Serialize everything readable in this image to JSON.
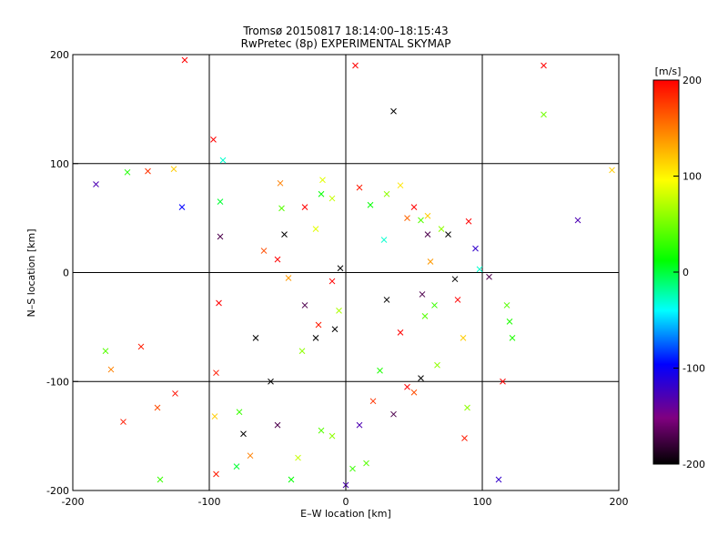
{
  "chart_data": {
    "type": "scatter",
    "title": "Tromsø 20150817 18:14:00–18:15:43",
    "subtitle": "RwPretec (8p) EXPERIMENTAL SKYMAP",
    "xlabel": "E–W location [km]",
    "ylabel": "N–S location [km]",
    "xlim": [
      -200,
      200
    ],
    "ylim": [
      -200,
      200
    ],
    "xticks": [
      -200,
      -100,
      0,
      100,
      200
    ],
    "yticks": [
      -200,
      -100,
      0,
      100,
      200
    ],
    "grid": true,
    "colorbar": {
      "title": "[m/s]",
      "range": [
        -200,
        200
      ],
      "ticks": [
        200,
        100,
        0,
        -100,
        -200
      ],
      "colormap": [
        "#000000",
        "#800080",
        "#0000ff",
        "#00ffff",
        "#00ff00",
        "#ffff00",
        "#ff0000"
      ]
    },
    "points_note_free": true,
    "series": [
      {
        "marker": "x",
        "points": [
          [
            -183,
            81,
            -130
          ],
          [
            -160,
            92,
            20
          ],
          [
            -145,
            93,
            180
          ],
          [
            -126,
            95,
            120
          ],
          [
            -120,
            60,
            -100
          ],
          [
            -118,
            195,
            200
          ],
          [
            -97,
            122,
            200
          ],
          [
            -92,
            65,
            0
          ],
          [
            -92,
            33,
            -170
          ],
          [
            -90,
            103,
            -30
          ],
          [
            -138,
            -124,
            170
          ],
          [
            -150,
            -68,
            190
          ],
          [
            -172,
            -89,
            150
          ],
          [
            -176,
            -72,
            40
          ],
          [
            -163,
            -137,
            190
          ],
          [
            -136,
            -190,
            30
          ],
          [
            -125,
            -111,
            195
          ],
          [
            -95,
            -92,
            190
          ],
          [
            -95,
            -185,
            190
          ],
          [
            -96,
            -132,
            120
          ],
          [
            -93,
            -28,
            200
          ],
          [
            -80,
            -178,
            0
          ],
          [
            -78,
            -128,
            30
          ],
          [
            -75,
            -148,
            -200
          ],
          [
            -70,
            -168,
            150
          ],
          [
            -66,
            -60,
            -200
          ],
          [
            -55,
            -100,
            -200
          ],
          [
            -50,
            -140,
            -170
          ],
          [
            -40,
            -190,
            10
          ],
          [
            -35,
            -170,
            80
          ],
          [
            -32,
            -72,
            60
          ],
          [
            -22,
            -60,
            -200
          ],
          [
            -18,
            -145,
            40
          ],
          [
            -10,
            -150,
            60
          ],
          [
            -8,
            -52,
            -200
          ],
          [
            -10,
            -8,
            200
          ],
          [
            -5,
            -35,
            70
          ],
          [
            -4,
            4,
            -200
          ],
          [
            0,
            -195,
            -130
          ],
          [
            5,
            -180,
            30
          ],
          [
            10,
            -140,
            -130
          ],
          [
            15,
            -175,
            40
          ],
          [
            20,
            -118,
            180
          ],
          [
            25,
            -90,
            20
          ],
          [
            30,
            -25,
            -200
          ],
          [
            35,
            -130,
            -170
          ],
          [
            40,
            -55,
            200
          ],
          [
            45,
            -105,
            200
          ],
          [
            50,
            -110,
            170
          ],
          [
            55,
            -97,
            -200
          ],
          [
            56,
            -20,
            -170
          ],
          [
            58,
            -40,
            40
          ],
          [
            60,
            35,
            -170
          ],
          [
            62,
            10,
            140
          ],
          [
            65,
            -30,
            30
          ],
          [
            67,
            -85,
            60
          ],
          [
            70,
            40,
            60
          ],
          [
            75,
            35,
            -200
          ],
          [
            80,
            -6,
            -200
          ],
          [
            82,
            -25,
            200
          ],
          [
            86,
            -60,
            120
          ],
          [
            87,
            -152,
            190
          ],
          [
            89,
            -124,
            60
          ],
          [
            90,
            47,
            200
          ],
          [
            95,
            22,
            -120
          ],
          [
            98,
            3,
            -30
          ],
          [
            105,
            -4,
            -170
          ],
          [
            112,
            -190,
            -120
          ],
          [
            115,
            -100,
            200
          ],
          [
            118,
            -30,
            40
          ],
          [
            120,
            -45,
            20
          ],
          [
            122,
            -60,
            20
          ],
          [
            145,
            190,
            200
          ],
          [
            145,
            145,
            50
          ],
          [
            170,
            48,
            -130
          ],
          [
            195,
            94,
            120
          ],
          [
            -48,
            82,
            150
          ],
          [
            -47,
            59,
            40
          ],
          [
            -45,
            35,
            -200
          ],
          [
            -30,
            60,
            200
          ],
          [
            -22,
            40,
            90
          ],
          [
            -18,
            72,
            10
          ],
          [
            -17,
            85,
            90
          ],
          [
            -10,
            68,
            80
          ],
          [
            7,
            190,
            200
          ],
          [
            10,
            78,
            190
          ],
          [
            18,
            62,
            10
          ],
          [
            30,
            72,
            60
          ],
          [
            35,
            148,
            -200
          ],
          [
            40,
            80,
            110
          ],
          [
            45,
            50,
            160
          ],
          [
            50,
            60,
            200
          ],
          [
            55,
            48,
            40
          ],
          [
            60,
            52,
            120
          ],
          [
            28,
            30,
            -30
          ],
          [
            -60,
            20,
            170
          ],
          [
            -50,
            12,
            200
          ],
          [
            -42,
            -5,
            140
          ],
          [
            -30,
            -30,
            -170
          ],
          [
            -20,
            -48,
            190
          ]
        ]
      }
    ]
  }
}
